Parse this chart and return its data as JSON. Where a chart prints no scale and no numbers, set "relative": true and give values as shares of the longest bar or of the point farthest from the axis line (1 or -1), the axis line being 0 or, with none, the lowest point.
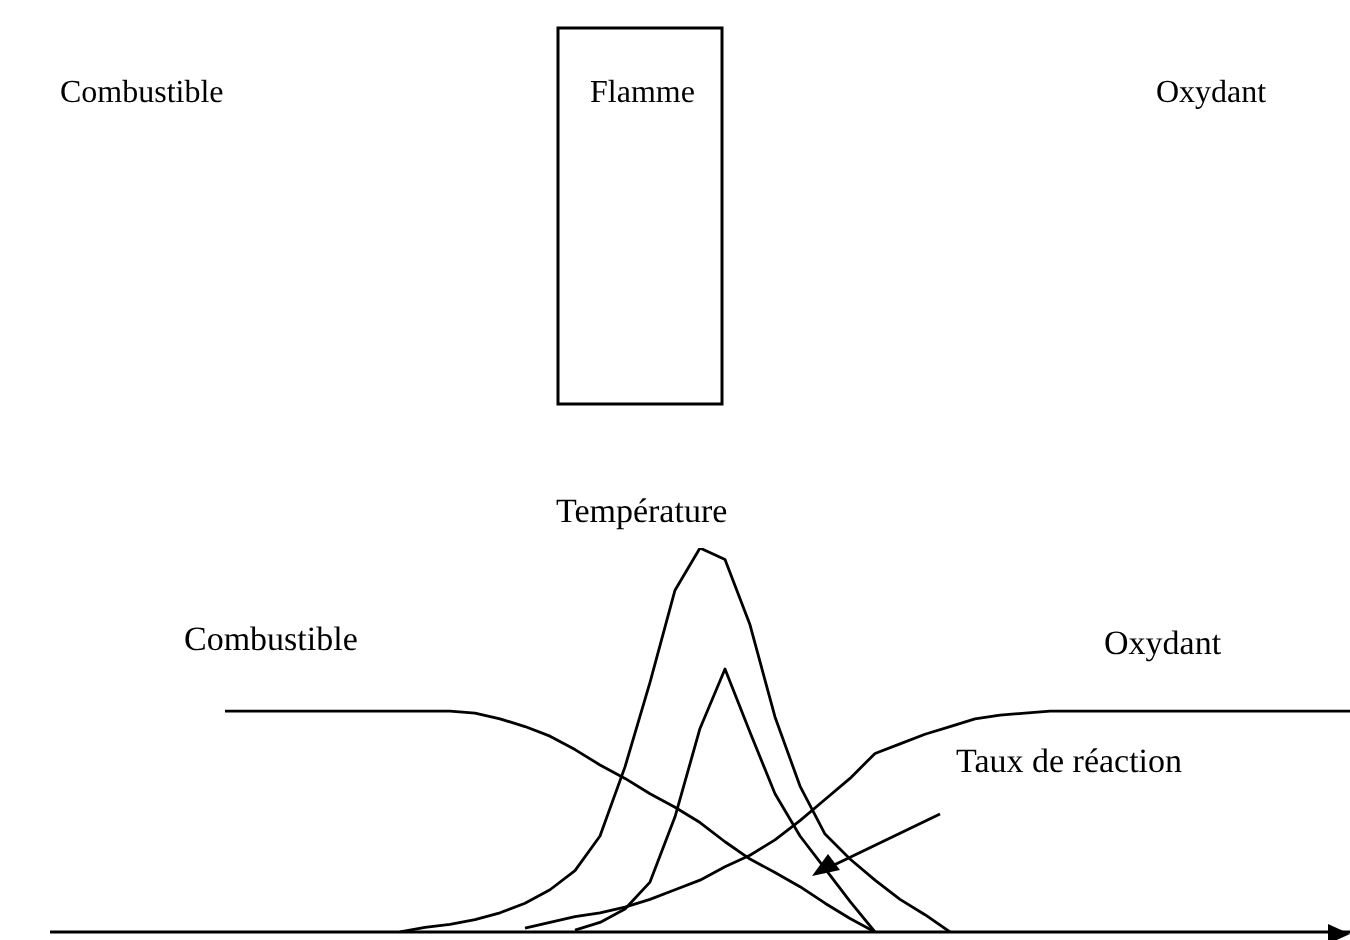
{
  "chart_data": {
    "type": "line",
    "relative": true,
    "categories": [
      null,
      null,
      null,
      null,
      null,
      null,
      null,
      null,
      null,
      null,
      null,
      null,
      null,
      null,
      null,
      null,
      null,
      null,
      null,
      null,
      null,
      null,
      null,
      null,
      null,
      null,
      null,
      null,
      null,
      null,
      null,
      null,
      null,
      null,
      null,
      null,
      null,
      null,
      null,
      null,
      null,
      null,
      null,
      null,
      null,
      null,
      null,
      null,
      null,
      null,
      null,
      null,
      null
    ],
    "annotations": [
      "Combustible",
      "Flamme",
      "Oxydant"
    ],
    "series": [
      {
        "name": "Combustible",
        "color": "#000000",
        "values": [
          null,
          null,
          null,
          null,
          null,
          null,
          null,
          0.575,
          0.575,
          0.575,
          0.575,
          0.575,
          0.575,
          0.575,
          0.575,
          0.575,
          0.575,
          0.57,
          0.555,
          0.535,
          0.51,
          0.475,
          0.435,
          0.4,
          0.36,
          0.325,
          0.285,
          0.235,
          0.19,
          0.155,
          0.118,
          0.075,
          0.035,
          0,
          null,
          null,
          null,
          null,
          null,
          null,
          null,
          null,
          null,
          null,
          null,
          null,
          null,
          null,
          null,
          null,
          null,
          null,
          null
        ]
      },
      {
        "name": "Oxydant",
        "color": "#000000",
        "values": [
          null,
          null,
          null,
          null,
          null,
          null,
          null,
          null,
          null,
          null,
          null,
          null,
          null,
          null,
          null,
          null,
          null,
          null,
          null,
          0.01,
          0.025,
          0.04,
          0.05,
          0.065,
          0.085,
          0.11,
          0.135,
          0.17,
          0.2,
          0.24,
          0.29,
          0.345,
          0.4,
          0.465,
          0.49,
          0.515,
          0.535,
          0.555,
          0.565,
          0.57,
          0.575,
          0.575,
          0.575,
          0.575,
          0.575,
          0.575,
          0.575,
          0.575,
          0.575,
          0.575,
          0.575,
          0.575,
          0.575
        ]
      },
      {
        "name": "Température",
        "color": "#000000",
        "values": [
          null,
          null,
          null,
          null,
          null,
          null,
          null,
          null,
          null,
          null,
          null,
          null,
          null,
          null,
          0,
          0.012,
          0.02,
          0.032,
          0.05,
          0.075,
          0.11,
          0.16,
          0.25,
          0.43,
          0.65,
          0.89,
          1,
          0.97,
          0.8,
          0.56,
          0.38,
          0.255,
          0.19,
          0.135,
          0.085,
          0.045,
          0,
          null,
          null,
          null,
          null,
          null,
          null,
          null,
          null,
          null,
          null,
          null,
          null,
          null,
          null,
          null,
          null
        ]
      },
      {
        "name": "Taux de réaction",
        "color": "#000000",
        "values": [
          null,
          null,
          null,
          null,
          null,
          null,
          null,
          null,
          null,
          null,
          null,
          null,
          null,
          null,
          null,
          null,
          null,
          null,
          null,
          null,
          null,
          0.005,
          0.025,
          0.06,
          0.13,
          0.3,
          0.53,
          0.685,
          0.52,
          0.36,
          0.25,
          0.165,
          0.08,
          0,
          null,
          null,
          null,
          null,
          null,
          null,
          null,
          null,
          null,
          null,
          null,
          null,
          null,
          null,
          null,
          null,
          null,
          null,
          null
        ]
      }
    ]
  }
}
